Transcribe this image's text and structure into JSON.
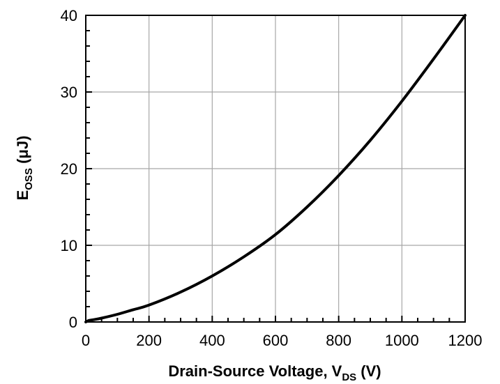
{
  "chart_data": {
    "type": "line",
    "title": "",
    "xlabel": "Drain-Source Voltage, V_DS (V)",
    "xlabel_parts": {
      "main": "Drain-Source Voltage, V",
      "sub": "DS",
      "tail": " (V)"
    },
    "ylabel": "E_OSS (μJ)",
    "ylabel_parts": {
      "main": "E",
      "sub": "OSS",
      "tail": " (μJ)"
    },
    "xlim": [
      0,
      1200
    ],
    "ylim": [
      0,
      40
    ],
    "x_ticks": [
      0,
      200,
      400,
      600,
      800,
      1000,
      1200
    ],
    "y_ticks": [
      0,
      10,
      20,
      30,
      40
    ],
    "x_tick_labels": [
      "0",
      "200",
      "400",
      "600",
      "800",
      "1000",
      "1200"
    ],
    "y_tick_labels": [
      "0",
      "10",
      "20",
      "30",
      "40"
    ],
    "x_minor_step": 50,
    "y_minor_step": 2,
    "grid": true,
    "legend": "none",
    "series": [
      {
        "color": "#000000",
        "x": [
          0,
          10,
          25,
          50,
          100,
          150,
          200,
          300,
          400,
          500,
          600,
          700,
          800,
          900,
          1000,
          1100,
          1200
        ],
        "y": [
          0,
          0.2,
          0.3,
          0.5,
          1.0,
          1.6,
          2.2,
          3.9,
          6.0,
          8.5,
          11.4,
          15.0,
          19.1,
          23.7,
          28.8,
          34.3,
          40.0
        ]
      }
    ]
  }
}
